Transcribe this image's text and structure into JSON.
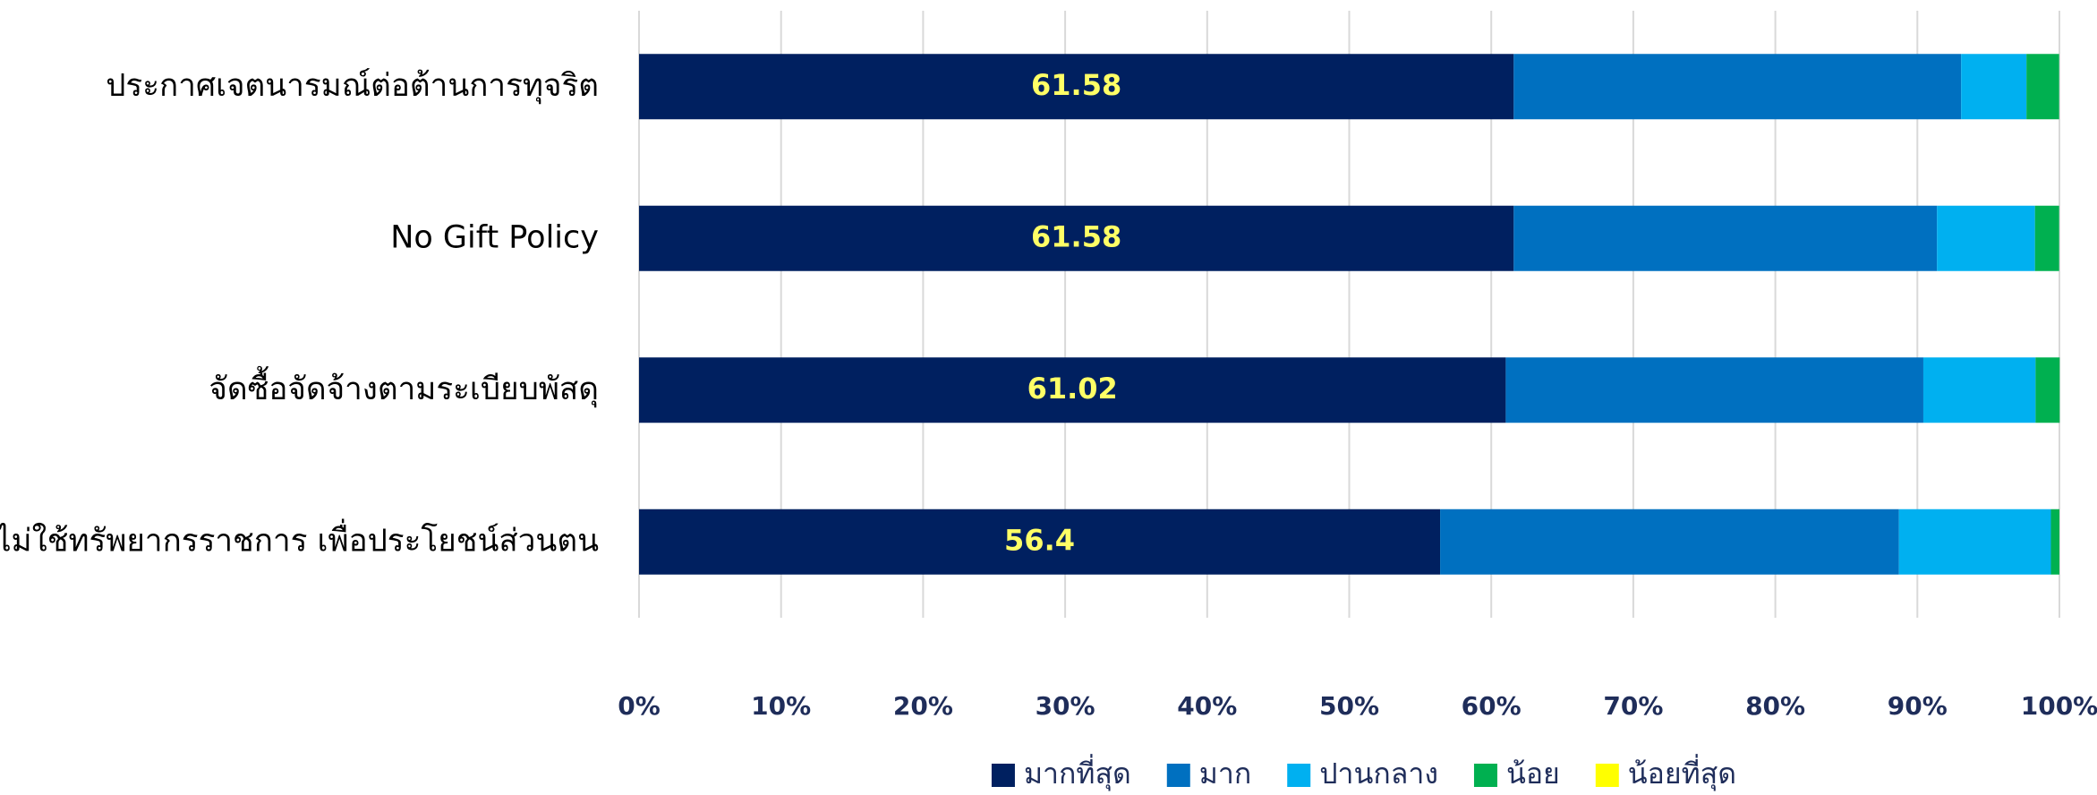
{
  "chart_data": {
    "type": "stacked_bar_horizontal",
    "categories": [
      "ประกาศเจตนารมณ์ต่อต้านการทุจริต",
      "No Gift Policy",
      "จัดซื้อจัดจ้างตามระเบียบพัสดุ",
      "ไม่ใช้ทรัพยากรราชการ เพื่อประโยชน์ส่วนตน"
    ],
    "series": [
      {
        "name": "มากที่สุด",
        "color": "#002060",
        "values": [
          61.58,
          61.58,
          61.02,
          56.4
        ],
        "show_labels": true,
        "label_color": "#ffff66"
      },
      {
        "name": "มาก",
        "color": "#0070c0",
        "values": [
          31.5,
          29.8,
          29.4,
          32.3
        ]
      },
      {
        "name": "ปานกลาง",
        "color": "#00b0f0",
        "values": [
          4.6,
          6.9,
          7.9,
          10.7
        ]
      },
      {
        "name": "น้อย",
        "color": "#00b050",
        "values": [
          2.3,
          1.7,
          1.7,
          0.6
        ]
      },
      {
        "name": "น้อยที่สุด",
        "color": "#ffff00",
        "values": [
          0,
          0,
          0,
          0
        ]
      }
    ],
    "xlim": [
      0,
      100
    ],
    "xticks": [
      {
        "value": 0,
        "label": "0%"
      },
      {
        "value": 10,
        "label": "10%"
      },
      {
        "value": 20,
        "label": "20%"
      },
      {
        "value": 30,
        "label": "30%"
      },
      {
        "value": 40,
        "label": "40%"
      },
      {
        "value": 50,
        "label": "50%"
      },
      {
        "value": 60,
        "label": "60%"
      },
      {
        "value": 70,
        "label": "70%"
      },
      {
        "value": 80,
        "label": "80%"
      },
      {
        "value": 90,
        "label": "90%"
      },
      {
        "value": 100,
        "label": "100%"
      }
    ],
    "grid": true,
    "legend": "bottom"
  }
}
